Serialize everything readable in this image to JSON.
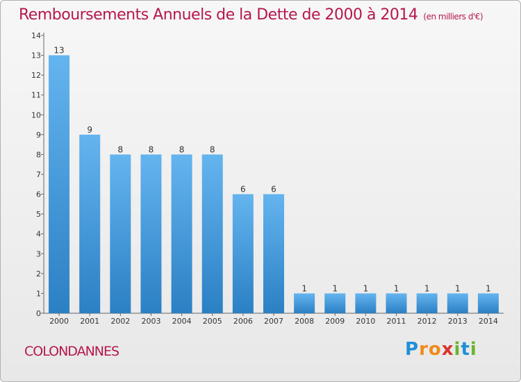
{
  "header": {
    "title": "Remboursements Annuels de la Dette de 2000 à 2014",
    "unit": "(en milliers d'€)"
  },
  "footer": {
    "town": "COLONDANNES",
    "logo_letters": [
      "P",
      "r",
      "o",
      "x",
      "i",
      "t",
      "i"
    ]
  },
  "colors": {
    "title": "#b5174f",
    "bar_light": "#64b4ef",
    "bar_dark": "#2b80c4"
  },
  "chart_data": {
    "type": "bar",
    "title": "Remboursements Annuels de la Dette de 2000 à 2014",
    "subtitle": "(en milliers d'€)",
    "xlabel": "",
    "ylabel": "",
    "categories": [
      "2000",
      "2001",
      "2002",
      "2003",
      "2004",
      "2005",
      "2006",
      "2007",
      "2008",
      "2009",
      "2010",
      "2011",
      "2012",
      "2013",
      "2014"
    ],
    "values": [
      13,
      9,
      8,
      8,
      8,
      8,
      6,
      6,
      1,
      1,
      1,
      1,
      1,
      1,
      1
    ],
    "ylim": [
      0,
      14
    ],
    "yticks": [
      0,
      1,
      2,
      3,
      4,
      5,
      6,
      7,
      8,
      9,
      10,
      11,
      12,
      13,
      14
    ],
    "grid": false,
    "legend": "none"
  }
}
